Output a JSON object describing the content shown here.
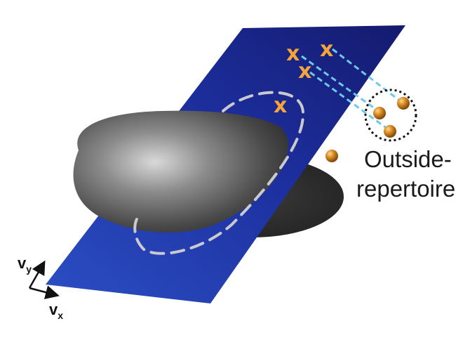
{
  "labels": {
    "outside_line1": "Outside-",
    "outside_line2": "repertoire"
  },
  "axes": {
    "vy_main": "v",
    "vy_sub": "y",
    "vx_main": "v",
    "vx_sub": "x"
  },
  "markers": {
    "x_symbol": "x"
  },
  "colors": {
    "plane": "#1c2a9a",
    "blob": "#4a4a4a",
    "x_marker": "#f3a43a",
    "projection_line": "#6ec8e8",
    "sphere": "#c77a1a"
  }
}
